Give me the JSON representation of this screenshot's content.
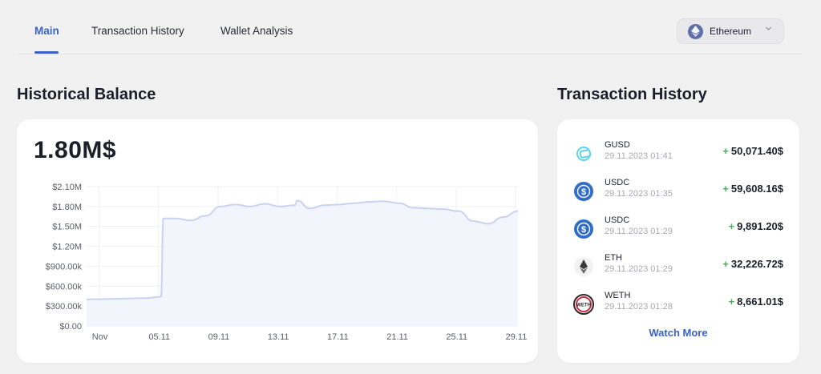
{
  "nav": {
    "tabs": [
      {
        "label": "Main",
        "active": true
      },
      {
        "label": "Transaction History",
        "active": false
      },
      {
        "label": "Wallet Analysis",
        "active": false
      }
    ],
    "network_select": {
      "value": "Ethereum",
      "icon": "ethereum-icon"
    }
  },
  "balance_section": {
    "title": "Historical Balance",
    "current_balance": "1.80M$"
  },
  "chart_data": {
    "type": "area",
    "x": [
      "Nov",
      "05.11",
      "09.11",
      "13.11",
      "17.11",
      "21.11",
      "25.11",
      "29.11"
    ],
    "x_range": [
      "01.11.2023",
      "30.11.2023"
    ],
    "ylim": [
      0,
      2100000
    ],
    "yticks": [
      "$0.00",
      "$300.00k",
      "$600.00k",
      "$900.00k",
      "$1.20M",
      "$1.50M",
      "$1.80M",
      "$2.10M"
    ],
    "grid": true,
    "series": [
      {
        "points": [
          [
            "01.11",
            400000
          ],
          [
            "02.11",
            405000
          ],
          [
            "03.11",
            410000
          ],
          [
            "04.11",
            415000
          ],
          [
            "05.11",
            420000
          ],
          [
            "06.11",
            440000
          ],
          [
            "06.11",
            1620000
          ],
          [
            "07.11",
            1620000
          ],
          [
            "08.11",
            1590000
          ],
          [
            "09.11",
            1660000
          ],
          [
            "10.11",
            1800000
          ],
          [
            "11.11",
            1830000
          ],
          [
            "12.11",
            1800000
          ],
          [
            "13.11",
            1840000
          ],
          [
            "14.11",
            1800000
          ],
          [
            "15.11",
            1820000
          ],
          [
            "15.11",
            1890000
          ],
          [
            "16.11",
            1770000
          ],
          [
            "17.11",
            1820000
          ],
          [
            "18.11",
            1830000
          ],
          [
            "19.11",
            1850000
          ],
          [
            "20.11",
            1870000
          ],
          [
            "21.11",
            1880000
          ],
          [
            "22.11",
            1850000
          ],
          [
            "23.11",
            1780000
          ],
          [
            "24.11",
            1770000
          ],
          [
            "25.11",
            1760000
          ],
          [
            "26.11",
            1730000
          ],
          [
            "27.11",
            1580000
          ],
          [
            "28.11",
            1540000
          ],
          [
            "29.11",
            1640000
          ],
          [
            "30.11",
            1730000
          ]
        ],
        "color": "#c9d2f2"
      }
    ]
  },
  "transactions": {
    "title": "Transaction History",
    "items": [
      {
        "token": "GUSD",
        "time": "29.11.2023 01:41",
        "sign": "+",
        "amount": "50,071.40$",
        "icon": "gusd-icon"
      },
      {
        "token": "USDC",
        "time": "29.11.2023 01:35",
        "sign": "+",
        "amount": "59,608.16$",
        "icon": "usdc-icon"
      },
      {
        "token": "USDC",
        "time": "29.11.2023 01:29",
        "sign": "+",
        "amount": "9,891.20$",
        "icon": "usdc-icon"
      },
      {
        "token": "ETH",
        "time": "29.11.2023 01:29",
        "sign": "+",
        "amount": "32,226.72$",
        "icon": "ethereum-icon"
      },
      {
        "token": "WETH",
        "time": "29.11.2023 01:28",
        "sign": "+",
        "amount": "8,661.01$",
        "icon": "weth-icon"
      }
    ],
    "watch_more_label": "Watch More"
  },
  "colors": {
    "accent": "#3b63c4",
    "positive": "#49b15a",
    "chart_line": "#c9d2f2",
    "chart_fill": "#f3f5fd"
  }
}
